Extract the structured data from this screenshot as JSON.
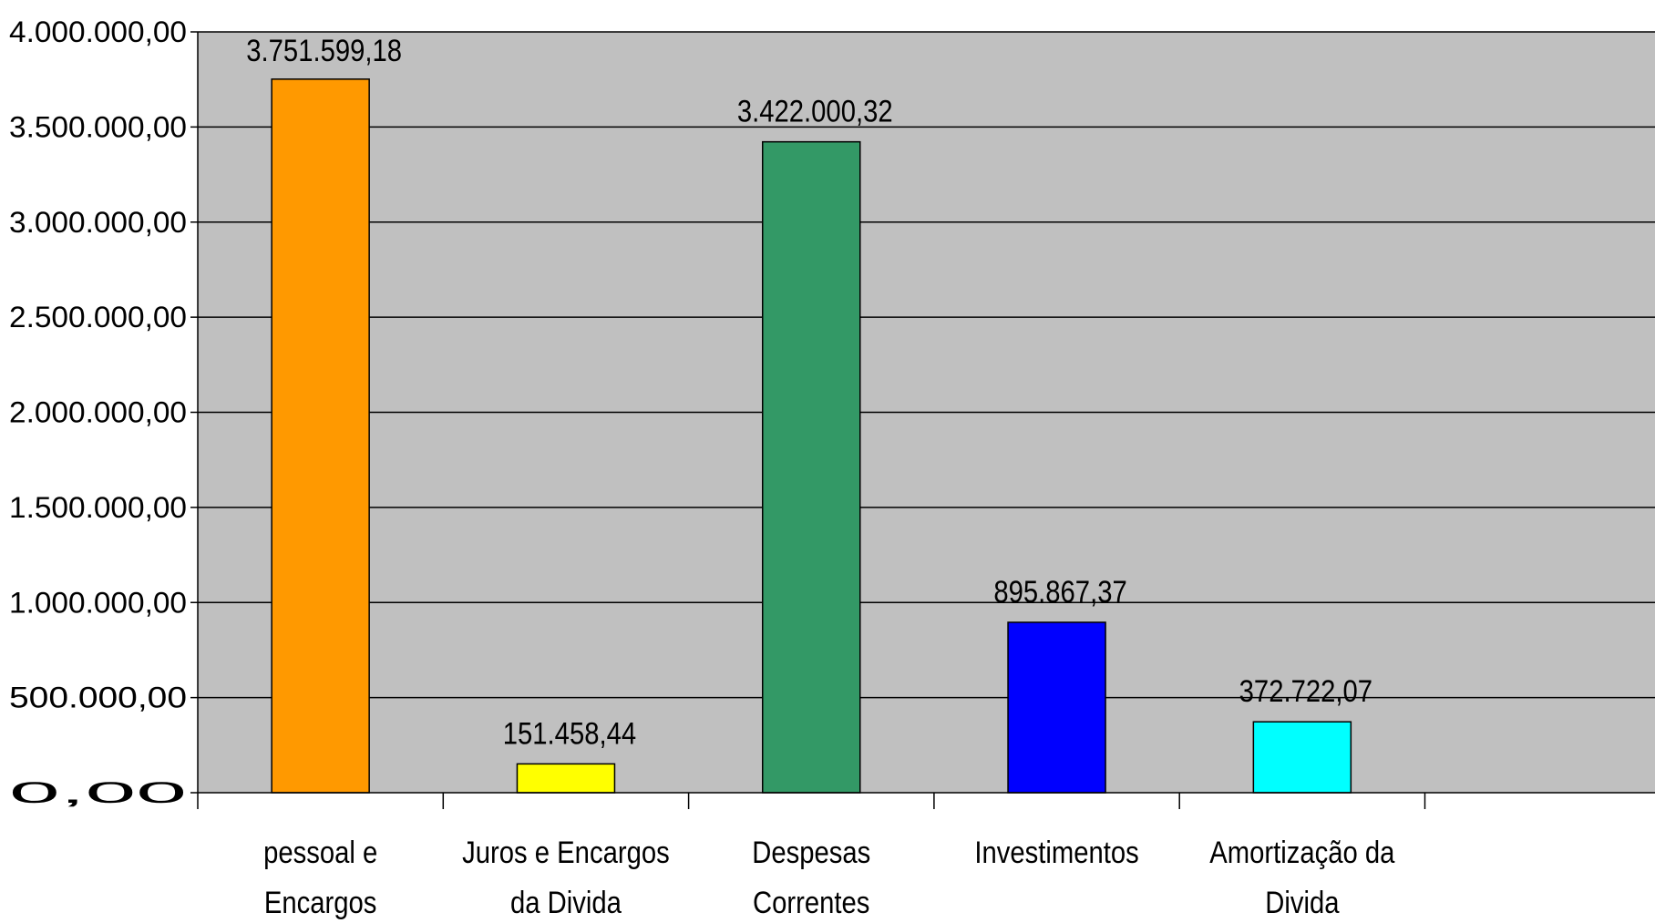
{
  "chart_data": {
    "type": "bar",
    "title": "",
    "xlabel": "",
    "ylabel": "",
    "ylim": [
      0,
      4000000
    ],
    "yticks": [
      0,
      500000,
      1000000,
      1500000,
      2000000,
      2500000,
      3000000,
      3500000,
      4000000
    ],
    "ytick_labels": [
      "0,00",
      "500.000,00",
      "1.000.000,00",
      "1.500.000,00",
      "2.000.000,00",
      "2.500.000,00",
      "3.000.000,00",
      "3.500.000,00",
      "4.000.000,00"
    ],
    "grid": true,
    "legend": "none",
    "categories": [
      [
        "pessoal e",
        "Encargos"
      ],
      [
        "Juros e Encargos",
        "da Divida"
      ],
      [
        "Despesas",
        "Correntes"
      ],
      [
        "Investimentos"
      ],
      [
        "Amortização da",
        "Divida"
      ],
      [
        ""
      ]
    ],
    "values": [
      3751599.18,
      151458.44,
      3422000.32,
      895867.37,
      372722.07,
      null
    ],
    "value_labels": [
      "3.751.599,18",
      "151.458,44",
      "3.422.000,32",
      "895.867,37",
      "372.722,07",
      ""
    ],
    "colors": [
      "#FF9900",
      "#FFFF00",
      "#339966",
      "#0000FF",
      "#00FFFF",
      "#000000"
    ],
    "plot_background": "#C0C0C0",
    "gridline_color": "#000000"
  }
}
